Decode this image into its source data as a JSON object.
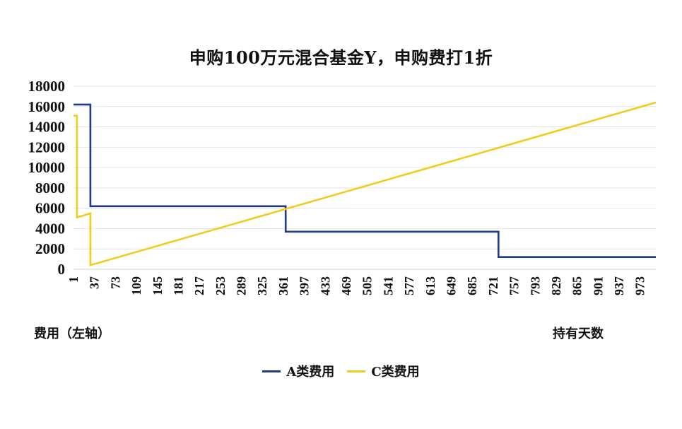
{
  "chart_data": {
    "type": "line",
    "title": "申购100万元混合基金Y，申购费打1折",
    "ylabel": "费用（左轴）",
    "xlabel": "持有天数",
    "ylim": [
      0,
      18000
    ],
    "xlim": [
      1,
      1000
    ],
    "y_ticks": [
      0,
      2000,
      4000,
      6000,
      8000,
      10000,
      12000,
      14000,
      16000,
      18000
    ],
    "x_tick_labels": [
      "1",
      "37",
      "73",
      "109",
      "145",
      "181",
      "217",
      "253",
      "289",
      "325",
      "361",
      "397",
      "433",
      "469",
      "505",
      "541",
      "577",
      "613",
      "649",
      "685",
      "721",
      "757",
      "793",
      "829",
      "865",
      "901",
      "937",
      "973"
    ],
    "grid": "horizontal",
    "legend_position": "bottom",
    "series": [
      {
        "name": "A类费用",
        "color": "#1f3a8a",
        "points": [
          [
            1,
            16200
          ],
          [
            30,
            16200
          ],
          [
            30,
            6200
          ],
          [
            365,
            6200
          ],
          [
            365,
            3700
          ],
          [
            730,
            3700
          ],
          [
            730,
            1200
          ],
          [
            1000,
            1200
          ]
        ]
      },
      {
        "name": "C类费用",
        "color": "#f2cc1c",
        "points": [
          [
            1,
            15100
          ],
          [
            7,
            15100
          ],
          [
            7,
            5100
          ],
          [
            30,
            5500
          ],
          [
            30,
            400
          ],
          [
            1000,
            16400
          ]
        ]
      }
    ]
  },
  "labels": {
    "title": "申购100万元混合基金Y，申购费打1折",
    "y_axis_note": "费用（左轴）",
    "x_axis_note": "持有天数",
    "legend_a": "A类费用",
    "legend_c": "C类费用"
  }
}
